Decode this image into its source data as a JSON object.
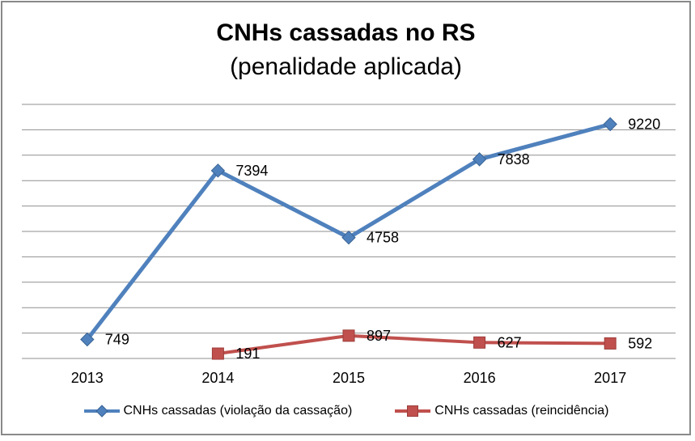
{
  "chart_data": {
    "type": "line",
    "title": "CNHs cassadas no RS",
    "subtitle": "(penalidade aplicada)",
    "categories": [
      "2013",
      "2014",
      "2015",
      "2016",
      "2017"
    ],
    "series": [
      {
        "name": "CNHs cassadas (violação da cassação)",
        "color": "#4F81BD",
        "marker": "diamond",
        "marker_border": "#3A6494",
        "line_width": 5,
        "values": [
          749,
          7394,
          4758,
          7838,
          9220
        ]
      },
      {
        "name": "CNHs cassadas (reincidência)",
        "color": "#C0504D",
        "marker": "square",
        "marker_border": "#9C3D3B",
        "line_width": 4,
        "values": [
          null,
          191,
          897,
          627,
          592
        ]
      }
    ],
    "ylim": [
      0,
      10000
    ],
    "gridline_step": 1000,
    "grid": true,
    "y_axis_labels_visible": false,
    "data_labels": "right",
    "legend_position": "bottom",
    "xlabel": "",
    "ylabel": ""
  },
  "style": {
    "gridline_color": "#8F8F8F",
    "text_color": "#000000",
    "frame_border_color": "#898989",
    "background": "#FFFFFF"
  }
}
